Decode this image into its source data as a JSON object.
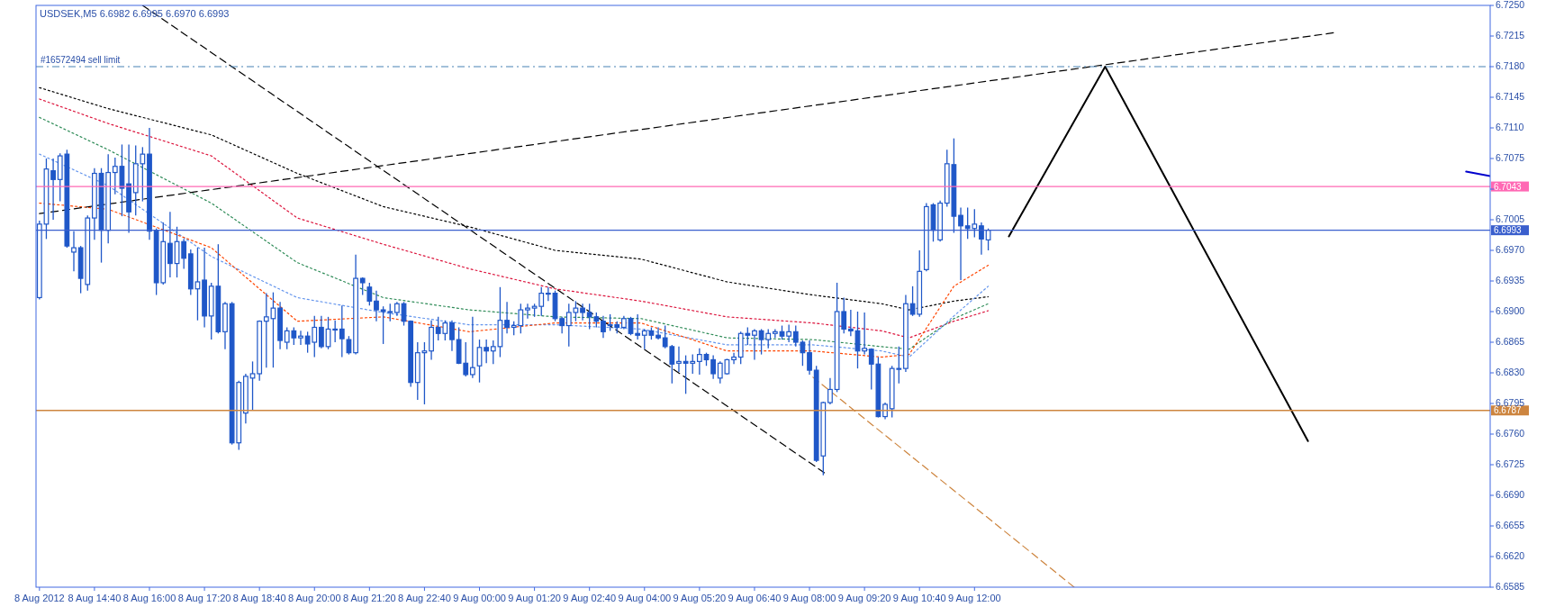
{
  "chart_data": {
    "type": "candlestick",
    "title": "USDSEK,M5  6.6982 6.6995 6.6970 6.6993",
    "color": "#1f57c8",
    "x": [
      "2012-08-08T13:20",
      "2012-08-08T13:30",
      "2012-08-08T13:40",
      "2012-08-08T13:50",
      "2012-08-08T14:00",
      "2012-08-08T14:10",
      "2012-08-08T14:20",
      "2012-08-08T14:30",
      "2012-08-08T14:40",
      "2012-08-08T14:50",
      "2012-08-08T15:00",
      "2012-08-08T15:10",
      "2012-08-08T15:20",
      "2012-08-08T15:30",
      "2012-08-08T15:40",
      "2012-08-08T15:50",
      "2012-08-08T16:00",
      "2012-08-08T16:10",
      "2012-08-08T16:20",
      "2012-08-08T16:30",
      "2012-08-08T16:40",
      "2012-08-08T16:50",
      "2012-08-08T17:00",
      "2012-08-08T17:10",
      "2012-08-08T17:20",
      "2012-08-08T17:30",
      "2012-08-08T17:40",
      "2012-08-08T17:50",
      "2012-08-08T18:00",
      "2012-08-08T18:10",
      "2012-08-08T18:20",
      "2012-08-08T18:30",
      "2012-08-08T18:40",
      "2012-08-08T18:50",
      "2012-08-08T19:00",
      "2012-08-08T19:10",
      "2012-08-08T19:20",
      "2012-08-08T19:30",
      "2012-08-08T19:40",
      "2012-08-08T19:50",
      "2012-08-08T20:00",
      "2012-08-08T20:10",
      "2012-08-08T20:20",
      "2012-08-08T20:30",
      "2012-08-08T20:40",
      "2012-08-08T20:50",
      "2012-08-08T21:00",
      "2012-08-08T21:10",
      "2012-08-08T21:20",
      "2012-08-08T21:30",
      "2012-08-08T21:40",
      "2012-08-08T21:50",
      "2012-08-08T22:00",
      "2012-08-08T22:10",
      "2012-08-08T22:20",
      "2012-08-08T22:30",
      "2012-08-08T22:40",
      "2012-08-08T22:50",
      "2012-08-08T23:00",
      "2012-08-08T23:10",
      "2012-08-08T23:20",
      "2012-08-08T23:30",
      "2012-08-08T23:40",
      "2012-08-08T23:50",
      "2012-08-09T00:00",
      "2012-08-09T00:10",
      "2012-08-09T00:20",
      "2012-08-09T00:30",
      "2012-08-09T00:40",
      "2012-08-09T00:50",
      "2012-08-09T01:00",
      "2012-08-09T01:10",
      "2012-08-09T01:20",
      "2012-08-09T01:30",
      "2012-08-09T01:40",
      "2012-08-09T01:50",
      "2012-08-09T02:00",
      "2012-08-09T02:10",
      "2012-08-09T02:20",
      "2012-08-09T02:30",
      "2012-08-09T02:40",
      "2012-08-09T02:50",
      "2012-08-09T03:00",
      "2012-08-09T03:10",
      "2012-08-09T03:20",
      "2012-08-09T03:30",
      "2012-08-09T03:40",
      "2012-08-09T03:50",
      "2012-08-09T04:00",
      "2012-08-09T04:10",
      "2012-08-09T04:20",
      "2012-08-09T04:30",
      "2012-08-09T04:40",
      "2012-08-09T04:50",
      "2012-08-09T05:00",
      "2012-08-09T05:10",
      "2012-08-09T05:20",
      "2012-08-09T05:30",
      "2012-08-09T05:40",
      "2012-08-09T05:50",
      "2012-08-09T06:00",
      "2012-08-09T06:10",
      "2012-08-09T06:20",
      "2012-08-09T06:30",
      "2012-08-09T06:40",
      "2012-08-09T06:50",
      "2012-08-09T07:00",
      "2012-08-09T07:10",
      "2012-08-09T07:20",
      "2012-08-09T07:30",
      "2012-08-09T07:40",
      "2012-08-09T07:50",
      "2012-08-09T08:00",
      "2012-08-09T08:10",
      "2012-08-09T08:20",
      "2012-08-09T08:30",
      "2012-08-09T08:40",
      "2012-08-09T08:50",
      "2012-08-09T09:00",
      "2012-08-09T09:10",
      "2012-08-09T09:20",
      "2012-08-09T09:30",
      "2012-08-09T09:40",
      "2012-08-09T09:50",
      "2012-08-09T10:00",
      "2012-08-09T10:10",
      "2012-08-09T10:20",
      "2012-08-09T10:30",
      "2012-08-09T10:40",
      "2012-08-09T10:50",
      "2012-08-09T11:00",
      "2012-08-09T11:10",
      "2012-08-09T11:20",
      "2012-08-09T11:30",
      "2012-08-09T11:40",
      "2012-08-09T11:50",
      "2012-08-09T12:00",
      "2012-08-09T12:10",
      "2012-08-09T12:20"
    ],
    "ohlc": [
      [
        6.6916,
        6.7004,
        6.6914,
        6.7
      ],
      [
        6.7,
        6.7075,
        6.6983,
        6.7063
      ],
      [
        6.7061,
        6.7075,
        6.7005,
        6.7051
      ],
      [
        6.7051,
        6.7081,
        6.7026,
        6.7078
      ],
      [
        6.708,
        6.7085,
        6.6973,
        6.6975
      ],
      [
        6.6968,
        6.6992,
        6.6946,
        6.6973
      ],
      [
        6.6973,
        6.6975,
        6.6921,
        6.6938
      ],
      [
        6.6931,
        6.701,
        6.6924,
        6.7007
      ],
      [
        6.7007,
        6.7064,
        6.6982,
        6.7058
      ],
      [
        6.7058,
        6.7064,
        6.6956,
        6.6993
      ],
      [
        6.6993,
        6.708,
        6.6978,
        6.7059
      ],
      [
        6.7059,
        6.7076,
        6.7034,
        6.7066
      ],
      [
        6.7066,
        6.7091,
        6.7009,
        6.7041
      ],
      [
        6.7046,
        6.7091,
        6.699,
        6.7014
      ],
      [
        6.7036,
        6.709,
        6.701,
        6.7069
      ],
      [
        6.7069,
        6.7088,
        6.7026,
        6.708
      ],
      [
        6.708,
        6.711,
        6.6982,
        6.6992
      ],
      [
        6.6992,
        6.6995,
        6.6919,
        6.6933
      ],
      [
        6.6933,
        6.7002,
        6.6931,
        6.698
      ],
      [
        6.6978,
        6.7014,
        6.6939,
        6.6955
      ],
      [
        6.6955,
        6.6997,
        6.6939,
        6.698
      ],
      [
        6.698,
        6.6983,
        6.6949,
        6.6961
      ],
      [
        6.6966,
        6.6971,
        6.6919,
        6.6926
      ],
      [
        6.6926,
        6.6973,
        6.689,
        6.6934
      ],
      [
        6.6936,
        6.6973,
        6.6882,
        6.6895
      ],
      [
        6.6895,
        6.6933,
        6.6868,
        6.6929
      ],
      [
        6.6929,
        6.6977,
        6.6875,
        6.6877
      ],
      [
        6.6877,
        6.6911,
        6.6857,
        6.6909
      ],
      [
        6.6909,
        6.6911,
        6.6748,
        6.675
      ],
      [
        6.675,
        6.6821,
        6.6742,
        6.6819
      ],
      [
        6.6784,
        6.6829,
        6.6772,
        6.6826
      ],
      [
        6.6824,
        6.6843,
        6.6787,
        6.6829
      ],
      [
        6.6829,
        6.689,
        6.6821,
        6.6889
      ],
      [
        6.6889,
        6.6921,
        6.6836,
        6.6894
      ],
      [
        6.6892,
        6.6922,
        6.6836,
        6.6904
      ],
      [
        6.6904,
        6.6911,
        6.6857,
        6.6867
      ],
      [
        6.6865,
        6.6882,
        6.6857,
        6.6878
      ],
      [
        6.6878,
        6.6882,
        6.6862,
        6.687
      ],
      [
        6.687,
        6.6878,
        6.6862,
        6.6872
      ],
      [
        6.6872,
        6.6877,
        6.6853,
        6.6863
      ],
      [
        6.6865,
        6.6895,
        6.6848,
        6.6882
      ],
      [
        6.6882,
        6.6895,
        6.6858,
        6.686
      ],
      [
        6.686,
        6.6894,
        6.6857,
        6.688
      ],
      [
        6.688,
        6.689,
        6.6865,
        6.688
      ],
      [
        6.688,
        6.6907,
        6.6848,
        6.6869
      ],
      [
        6.6868,
        6.6872,
        6.6851,
        6.6853
      ],
      [
        6.6853,
        6.6965,
        6.6851,
        6.6938
      ],
      [
        6.6938,
        6.6939,
        6.6919,
        6.6933
      ],
      [
        6.6928,
        6.6933,
        6.6907,
        6.6912
      ],
      [
        6.6912,
        6.6924,
        6.6889,
        6.6902
      ],
      [
        6.6902,
        6.6906,
        6.6863,
        6.69
      ],
      [
        6.69,
        6.6909,
        6.6889,
        6.6899
      ],
      [
        6.6899,
        6.6911,
        6.6895,
        6.6909
      ],
      [
        6.6909,
        6.6911,
        6.6884,
        6.6889
      ],
      [
        6.6889,
        6.689,
        6.6814,
        6.6819
      ],
      [
        6.6819,
        6.6865,
        6.6799,
        6.6853
      ],
      [
        6.6853,
        6.6865,
        6.6794,
        6.6855
      ],
      [
        6.6855,
        6.689,
        6.6845,
        6.6882
      ],
      [
        6.6882,
        6.6894,
        6.6867,
        6.6875
      ],
      [
        6.6875,
        6.689,
        6.6867,
        6.6887
      ],
      [
        6.6887,
        6.689,
        6.6855,
        6.6868
      ],
      [
        6.6868,
        6.6882,
        6.684,
        6.6841
      ],
      [
        6.6841,
        6.6865,
        6.6826,
        6.6828
      ],
      [
        6.6828,
        6.6894,
        6.6824,
        6.6836
      ],
      [
        6.6838,
        6.6868,
        6.6819,
        6.6859
      ],
      [
        6.6859,
        6.6868,
        6.6841,
        6.6855
      ],
      [
        6.6855,
        6.6867,
        6.684,
        6.686
      ],
      [
        6.686,
        6.6928,
        6.6848,
        6.689
      ],
      [
        6.689,
        6.6911,
        6.6875,
        6.6882
      ],
      [
        6.6882,
        6.6889,
        6.6873,
        6.6884
      ],
      [
        6.6884,
        6.6909,
        6.6875,
        6.6902
      ],
      [
        6.6902,
        6.6909,
        6.6892,
        6.6904
      ],
      [
        6.6904,
        6.6909,
        6.6894,
        6.6906
      ],
      [
        6.6906,
        6.6928,
        6.6895,
        6.6921
      ],
      [
        6.6921,
        6.6928,
        6.6912,
        6.6921
      ],
      [
        6.6921,
        6.6924,
        6.6889,
        6.6892
      ],
      [
        6.6892,
        6.6894,
        6.6875,
        6.6884
      ],
      [
        6.6884,
        6.6909,
        6.686,
        6.6899
      ],
      [
        6.6899,
        6.6912,
        6.6889,
        6.6904
      ],
      [
        6.6904,
        6.6909,
        6.689,
        6.6899
      ],
      [
        6.6899,
        6.6909,
        6.688,
        6.6894
      ],
      [
        6.6894,
        6.6899,
        6.6882,
        6.6889
      ],
      [
        6.6889,
        6.6895,
        6.687,
        6.6877
      ],
      [
        6.6884,
        6.6897,
        6.6878,
        6.6885
      ],
      [
        6.6885,
        6.6889,
        6.6875,
        6.6882
      ],
      [
        6.6882,
        6.6895,
        6.688,
        6.6892
      ],
      [
        6.6892,
        6.6894,
        6.6873,
        6.6875
      ],
      [
        6.6875,
        6.6897,
        6.6868,
        6.6873
      ],
      [
        6.6873,
        6.688,
        6.6857,
        6.6878
      ],
      [
        6.6878,
        6.6882,
        6.6868,
        6.6873
      ],
      [
        6.6873,
        6.6882,
        6.6868,
        6.687
      ],
      [
        6.687,
        6.6884,
        6.6858,
        6.686
      ],
      [
        6.686,
        6.6862,
        6.6818,
        6.684
      ],
      [
        6.6841,
        6.686,
        6.6831,
        6.6843
      ],
      [
        6.6843,
        6.685,
        6.6806,
        6.6841
      ],
      [
        6.6841,
        6.6851,
        6.6829,
        6.6843
      ],
      [
        6.6843,
        6.6858,
        6.6828,
        6.6851
      ],
      [
        6.6851,
        6.6853,
        6.6838,
        6.6845
      ],
      [
        6.6845,
        6.685,
        6.6823,
        6.6829
      ],
      [
        6.6824,
        6.6843,
        6.6818,
        6.6841
      ],
      [
        6.6829,
        6.6846,
        6.6828,
        6.6845
      ],
      [
        6.6845,
        6.6853,
        6.684,
        6.6848
      ],
      [
        6.6848,
        6.6877,
        6.684,
        6.6875
      ],
      [
        6.6875,
        6.6882,
        6.6862,
        6.6873
      ],
      [
        6.6873,
        6.688,
        6.6845,
        6.6878
      ],
      [
        6.6878,
        6.688,
        6.6851,
        6.6868
      ],
      [
        6.6868,
        6.688,
        6.6858,
        6.6875
      ],
      [
        6.6875,
        6.688,
        6.687,
        6.6877
      ],
      [
        6.6877,
        6.6884,
        6.6868,
        6.6872
      ],
      [
        6.6872,
        6.6885,
        6.6865,
        6.6877
      ],
      [
        6.6877,
        6.6884,
        6.686,
        6.6865
      ],
      [
        6.6865,
        6.6867,
        6.6838,
        6.6853
      ],
      [
        6.6853,
        6.6867,
        6.6828,
        6.6833
      ],
      [
        6.6833,
        6.6838,
        6.6728,
        6.673
      ],
      [
        6.6735,
        6.6797,
        6.6713,
        6.6796
      ],
      [
        6.6796,
        6.6824,
        6.6794,
        6.6811
      ],
      [
        6.6811,
        6.6933,
        6.6808,
        6.69
      ],
      [
        6.69,
        6.6916,
        6.6875,
        6.688
      ],
      [
        6.688,
        6.6902,
        6.6872,
        6.6878
      ],
      [
        6.6878,
        6.69,
        6.6835,
        6.6855
      ],
      [
        6.6855,
        6.6899,
        6.6851,
        6.6858
      ],
      [
        6.6857,
        6.6858,
        6.6811,
        6.684
      ],
      [
        6.684,
        6.6848,
        6.6779,
        6.678
      ],
      [
        6.678,
        6.6796,
        6.6777,
        6.6794
      ],
      [
        6.6789,
        6.6838,
        6.6779,
        6.6835
      ],
      [
        6.6835,
        6.686,
        6.6818,
        6.6835
      ],
      [
        6.6835,
        6.6919,
        6.6831,
        6.6909
      ],
      [
        6.6909,
        6.6929,
        6.6895,
        6.6897
      ],
      [
        6.6897,
        6.697,
        6.6894,
        6.6946
      ],
      [
        6.6948,
        6.7024,
        6.6946,
        6.702
      ],
      [
        6.7022,
        6.7024,
        6.698,
        6.6993
      ],
      [
        6.6982,
        6.7027,
        6.698,
        6.7024
      ],
      [
        6.7024,
        6.7085,
        6.702,
        6.7069
      ],
      [
        6.7068,
        6.7098,
        6.699,
        6.7009
      ],
      [
        6.701,
        6.7019,
        6.6936,
        6.6998
      ],
      [
        6.6998,
        6.7019,
        6.6983,
        6.6995
      ],
      [
        6.6995,
        6.7017,
        6.6985,
        6.7
      ],
      [
        6.6998,
        6.7002,
        6.6965,
        6.6983
      ],
      [
        6.6982,
        6.6995,
        6.697,
        6.6993
      ]
    ],
    "series": [
      {
        "type": "line",
        "color": "#000000",
        "line_style": "dotted",
        "x": [
          "2012-08-08T13:20",
          "2012-08-08T15:00",
          "2012-08-08T17:30",
          "2012-08-08T19:35",
          "2012-08-08T21:40",
          "2012-08-08T23:45",
          "2012-08-09T01:50",
          "2012-08-09T03:55",
          "2012-08-09T06:00",
          "2012-08-09T08:05",
          "2012-08-09T09:45",
          "2012-08-09T10:25",
          "2012-08-09T11:30",
          "2012-08-09T12:20"
        ],
        "values": [
          6.7156,
          6.7132,
          6.7102,
          6.7058,
          6.702,
          6.6997,
          6.697,
          6.696,
          6.6934,
          6.6919,
          6.6909,
          6.6902,
          6.6912,
          6.6917
        ]
      },
      {
        "type": "line",
        "color": "#dc143c",
        "line_style": "dotted",
        "x": [
          "2012-08-08T13:20",
          "2012-08-08T15:00",
          "2012-08-08T17:30",
          "2012-08-08T19:35",
          "2012-08-08T21:40",
          "2012-08-08T23:45",
          "2012-08-09T01:50",
          "2012-08-09T03:55",
          "2012-08-09T06:00",
          "2012-08-09T08:05",
          "2012-08-09T09:45",
          "2012-08-09T10:25",
          "2012-08-09T11:30",
          "2012-08-09T12:20"
        ],
        "values": [
          6.7143,
          6.7115,
          6.7078,
          6.7007,
          6.6977,
          6.6949,
          6.6926,
          6.6912,
          6.6894,
          6.6887,
          6.6878,
          6.687,
          6.6889,
          6.6901
        ]
      },
      {
        "type": "line",
        "color": "#2e8b57",
        "line_style": "dotted",
        "x": [
          "2012-08-08T13:20",
          "2012-08-08T15:00",
          "2012-08-08T17:30",
          "2012-08-08T19:35",
          "2012-08-08T21:40",
          "2012-08-08T23:45",
          "2012-08-09T01:50",
          "2012-08-09T03:55",
          "2012-08-09T06:00",
          "2012-08-09T08:05",
          "2012-08-09T09:45",
          "2012-08-09T10:25",
          "2012-08-09T11:30",
          "2012-08-09T12:20"
        ],
        "values": [
          6.7122,
          6.7085,
          6.7024,
          6.6956,
          6.6916,
          6.6902,
          6.6894,
          6.6892,
          6.687,
          6.6868,
          6.686,
          6.6857,
          6.6892,
          6.6909
        ]
      },
      {
        "type": "line",
        "color": "#6495ed",
        "line_style": "dotted",
        "x": [
          "2012-08-08T13:20",
          "2012-08-08T15:00",
          "2012-08-08T17:30",
          "2012-08-08T19:35",
          "2012-08-08T21:40",
          "2012-08-08T23:45",
          "2012-08-09T01:50",
          "2012-08-09T03:55",
          "2012-08-09T06:00",
          "2012-08-09T08:05",
          "2012-08-09T09:45",
          "2012-08-09T10:25",
          "2012-08-09T11:30",
          "2012-08-09T12:20"
        ],
        "values": [
          6.708,
          6.7044,
          6.6963,
          6.6916,
          6.6899,
          6.6885,
          6.6885,
          6.688,
          6.6862,
          6.6862,
          6.6855,
          6.6848,
          6.6895,
          6.6929
        ]
      },
      {
        "type": "line",
        "color": "#ff4500",
        "line_style": "dotted",
        "x": [
          "2012-08-08T13:20",
          "2012-08-08T15:00",
          "2012-08-08T17:30",
          "2012-08-08T19:35",
          "2012-08-08T21:40",
          "2012-08-08T23:45",
          "2012-08-09T01:50",
          "2012-08-09T03:55",
          "2012-08-09T06:00",
          "2012-08-09T08:05",
          "2012-08-09T09:45",
          "2012-08-09T10:25",
          "2012-08-09T11:30",
          "2012-08-09T12:20"
        ],
        "values": [
          6.7024,
          6.7017,
          6.6973,
          6.6889,
          6.6894,
          6.6877,
          6.6887,
          6.6887,
          6.6855,
          6.6855,
          6.6848,
          6.6851,
          6.6929,
          6.6953
        ]
      },
      {
        "type": "line",
        "color": "#000000",
        "line_style": "dashed",
        "x": [
          "2012-08-08T13:20",
          "2012-08-09T20:45"
        ],
        "values": [
          6.7012,
          6.7219
        ]
      },
      {
        "type": "line",
        "color": "#000000",
        "line_style": "dashed",
        "x": [
          "2012-08-08T15:50",
          "2012-08-09T08:25"
        ],
        "values": [
          6.725,
          6.6714
        ]
      },
      {
        "type": "line",
        "color": "#cd853f",
        "line_style": "dashed",
        "x": [
          "2012-08-09T08:05",
          "2012-08-09T14:25"
        ],
        "values": [
          6.6825,
          6.6585
        ]
      },
      {
        "type": "line",
        "color": "#000000",
        "line_style": "solid",
        "x": [
          "2012-08-09T12:50",
          "2012-08-09T15:10",
          "2012-08-09T20:05"
        ],
        "values": [
          6.6986,
          6.718,
          6.6752
        ]
      },
      {
        "type": "line",
        "color": "#0000cd",
        "line_style": "solid",
        "x": [
          "2012-08-09T23:55",
          "2012-08-10T00:30"
        ],
        "values": [
          6.706,
          6.7055
        ]
      }
    ],
    "ref_lines": [
      {
        "axis": "y",
        "value": 6.718,
        "label": "#16572494 sell limit",
        "color": "#4682b4",
        "line_style": "dashed"
      },
      {
        "axis": "y",
        "value": 6.7043,
        "label": "6.7043",
        "color": "#ff69b4",
        "line_style": "solid"
      },
      {
        "axis": "y",
        "value": 6.6993,
        "label": "6.6993",
        "color": "#3a5fcd",
        "line_style": "solid"
      },
      {
        "axis": "y",
        "value": 6.6787,
        "label": "6.6787",
        "color": "#cd853f",
        "line_style": "solid"
      }
    ],
    "xlim": [
      "2012-08-08T13:15",
      "2012-08-10T00:30"
    ],
    "xticks": [
      {
        "value": "2012-08-08T13:20",
        "label": "8 Aug 2012"
      },
      {
        "value": "2012-08-08T14:40",
        "label": "8 Aug 14:40"
      },
      {
        "value": "2012-08-08T16:00",
        "label": "8 Aug 16:00"
      },
      {
        "value": "2012-08-08T17:20",
        "label": "8 Aug 17:20"
      },
      {
        "value": "2012-08-08T18:40",
        "label": "8 Aug 18:40"
      },
      {
        "value": "2012-08-08T20:00",
        "label": "8 Aug 20:00"
      },
      {
        "value": "2012-08-08T21:20",
        "label": "8 Aug 21:20"
      },
      {
        "value": "2012-08-08T22:40",
        "label": "8 Aug 22:40"
      },
      {
        "value": "2012-08-09T00:00",
        "label": "9 Aug 00:00"
      },
      {
        "value": "2012-08-09T01:20",
        "label": "9 Aug 01:20"
      },
      {
        "value": "2012-08-09T02:40",
        "label": "9 Aug 02:40"
      },
      {
        "value": "2012-08-09T04:00",
        "label": "9 Aug 04:00"
      },
      {
        "value": "2012-08-09T05:20",
        "label": "9 Aug 05:20"
      },
      {
        "value": "2012-08-09T06:40",
        "label": "9 Aug 06:40"
      },
      {
        "value": "2012-08-09T08:00",
        "label": "9 Aug 08:00"
      },
      {
        "value": "2012-08-09T09:20",
        "label": "9 Aug 09:20"
      },
      {
        "value": "2012-08-09T10:40",
        "label": "9 Aug 10:40"
      },
      {
        "value": "2012-08-09T12:00",
        "label": "9 Aug 12:00"
      }
    ],
    "ylim": [
      6.6585,
      6.725
    ],
    "yticks": [
      {
        "value": 6.6585,
        "label": "6.6585"
      },
      {
        "value": 6.662,
        "label": "6.6620"
      },
      {
        "value": 6.6655,
        "label": "6.6655"
      },
      {
        "value": 6.669,
        "label": "6.6690"
      },
      {
        "value": 6.6725,
        "label": "6.6725"
      },
      {
        "value": 6.676,
        "label": "6.6760"
      },
      {
        "value": 6.6795,
        "label": "6.6795"
      },
      {
        "value": 6.683,
        "label": "6.6830"
      },
      {
        "value": 6.6865,
        "label": "6.6865"
      },
      {
        "value": 6.69,
        "label": "6.6900"
      },
      {
        "value": 6.6935,
        "label": "6.6935"
      },
      {
        "value": 6.697,
        "label": "6.6970"
      },
      {
        "value": 6.7005,
        "label": "6.7005"
      },
      {
        "value": 6.704,
        "label": null
      },
      {
        "value": 6.7075,
        "label": "6.7075"
      },
      {
        "value": 6.711,
        "label": "6.7110"
      },
      {
        "value": 6.7145,
        "label": "6.7145"
      },
      {
        "value": 6.718,
        "label": "6.7180"
      },
      {
        "value": 6.7215,
        "label": "6.7215"
      },
      {
        "value": 6.725,
        "label": "6.7250"
      }
    ],
    "grid": false
  }
}
